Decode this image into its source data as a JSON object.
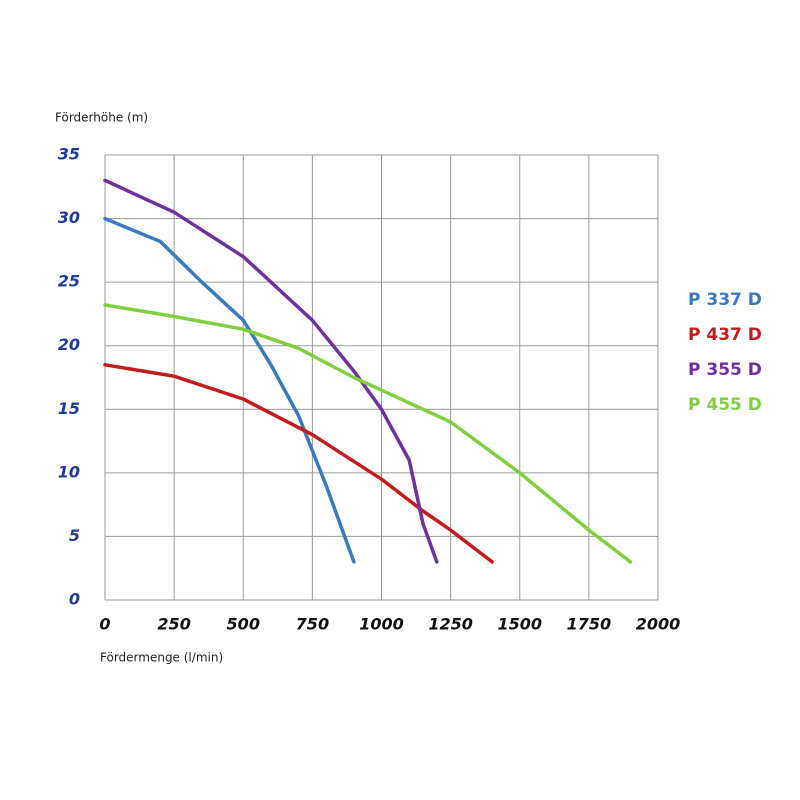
{
  "chart_data": {
    "type": "line",
    "y_label": "Förderhöhe (m)",
    "x_label": "Fördermenge (l/min)",
    "xlim": [
      0,
      2000
    ],
    "xticks": [
      0,
      250,
      500,
      750,
      1000,
      1250,
      1500,
      1750,
      2000
    ],
    "ylim": [
      0,
      35
    ],
    "yticks": [
      0,
      5,
      10,
      15,
      20,
      25,
      30,
      35
    ],
    "grid": true,
    "series": [
      {
        "name": "P 337 D",
        "color": "#3a78c0",
        "x": [
          0,
          200,
          350,
          500,
          600,
          700,
          800,
          900
        ],
        "values": [
          30,
          28.2,
          25,
          22,
          18.5,
          14.5,
          9,
          3
        ]
      },
      {
        "name": "P 437 D",
        "color": "#c41a1a",
        "x": [
          0,
          250,
          500,
          750,
          1000,
          1150,
          1250,
          1400
        ],
        "values": [
          18.5,
          17.6,
          15.8,
          13,
          9.5,
          7,
          5.5,
          3
        ]
      },
      {
        "name": "P 355 D",
        "color": "#7030a0",
        "x": [
          0,
          250,
          500,
          750,
          900,
          1000,
          1100,
          1150,
          1200
        ],
        "values": [
          33,
          30.5,
          27,
          22,
          18,
          15,
          11,
          6,
          3
        ]
      },
      {
        "name": "P 455 D",
        "color": "#7ed03e",
        "x": [
          0,
          250,
          500,
          700,
          900,
          1000,
          1250,
          1500,
          1750,
          1900
        ],
        "values": [
          23.2,
          22.3,
          21.3,
          19.8,
          17.5,
          16.5,
          14,
          10,
          5.5,
          3
        ]
      }
    ]
  }
}
